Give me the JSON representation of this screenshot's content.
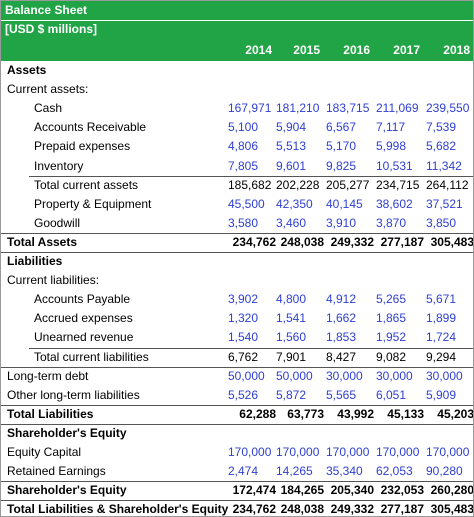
{
  "header": {
    "title": "Balance Sheet",
    "unit": "[USD $ millions]"
  },
  "table": {
    "columns": [
      "2014",
      "2015",
      "2016",
      "2017",
      "2018"
    ],
    "rows": [
      {
        "label": "Assets"
      },
      {
        "label": "Current assets:"
      },
      {
        "label": "Cash",
        "values": [
          "167,971",
          "181,210",
          "183,715",
          "211,069",
          "239,550"
        ]
      },
      {
        "label": "Accounts Receivable",
        "values": [
          "5,100",
          "5,904",
          "6,567",
          "7,117",
          "7,539"
        ]
      },
      {
        "label": "Prepaid expenses",
        "values": [
          "4,806",
          "5,513",
          "5,170",
          "5,998",
          "5,682"
        ]
      },
      {
        "label": "Inventory",
        "values": [
          "7,805",
          "9,601",
          "9,825",
          "10,531",
          "11,342"
        ]
      },
      {
        "label": "Total current assets",
        "values": [
          "185,682",
          "202,228",
          "205,277",
          "234,715",
          "264,112"
        ]
      },
      {
        "label": "Property & Equipment",
        "values": [
          "45,500",
          "42,350",
          "40,145",
          "38,602",
          "37,521"
        ]
      },
      {
        "label": "Goodwill",
        "values": [
          "3,580",
          "3,460",
          "3,910",
          "3,870",
          "3,850"
        ]
      },
      {
        "label": "Total Assets",
        "values": [
          "234,762",
          "248,038",
          "249,332",
          "277,187",
          "305,483"
        ]
      },
      {
        "label": "Liabilities"
      },
      {
        "label": "Current liabilities:"
      },
      {
        "label": "Accounts Payable",
        "values": [
          "3,902",
          "4,800",
          "4,912",
          "5,265",
          "5,671"
        ]
      },
      {
        "label": "Accrued expenses",
        "values": [
          "1,320",
          "1,541",
          "1,662",
          "1,865",
          "1,899"
        ]
      },
      {
        "label": "Unearned revenue",
        "values": [
          "1,540",
          "1,560",
          "1,853",
          "1,952",
          "1,724"
        ]
      },
      {
        "label": "Total current liabilities",
        "values": [
          "6,762",
          "7,901",
          "8,427",
          "9,082",
          "9,294"
        ]
      },
      {
        "label": "Long-term debt",
        "values": [
          "50,000",
          "50,000",
          "30,000",
          "30,000",
          "30,000"
        ]
      },
      {
        "label": "Other long-term liabilities",
        "values": [
          "5,526",
          "5,872",
          "5,565",
          "6,051",
          "5,909"
        ]
      },
      {
        "label": "Total Liabilities",
        "values": [
          "62,288",
          "63,773",
          "43,992",
          "45,133",
          "45,203"
        ]
      },
      {
        "label": "Shareholder's Equity"
      },
      {
        "label": "Equity Capital",
        "values": [
          "170,000",
          "170,000",
          "170,000",
          "170,000",
          "170,000"
        ]
      },
      {
        "label": "Retained Earnings",
        "values": [
          "2,474",
          "14,265",
          "35,340",
          "62,053",
          "90,280"
        ]
      },
      {
        "label": "Shareholder's Equity",
        "values": [
          "172,474",
          "184,265",
          "205,340",
          "232,053",
          "260,280"
        ]
      },
      {
        "label": "Total Liabilities & Shareholder's Equity",
        "values": [
          "234,762",
          "248,038",
          "249,332",
          "277,187",
          "305,483"
        ]
      }
    ]
  }
}
